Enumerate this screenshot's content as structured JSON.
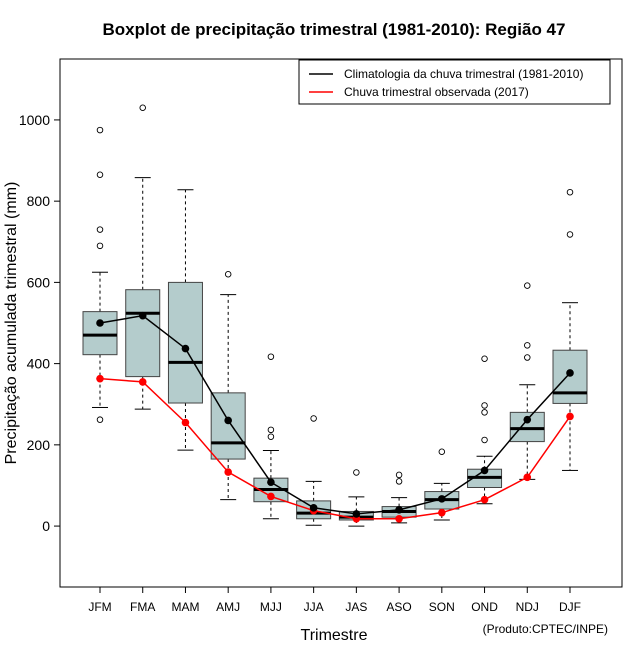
{
  "chart_data": {
    "type": "boxplot",
    "title": "Boxplot de precipitação trimestral (1981-2010): Região 47",
    "xlabel": "Trimestre",
    "ylabel": "Precipitação acumulada trimestral (mm)",
    "credit": "(Produto:CPTEC/INPE)",
    "ylim": [
      -150,
      1150
    ],
    "yticks": [
      0,
      200,
      400,
      600,
      800,
      1000
    ],
    "categories": [
      "JFM",
      "FMA",
      "MAM",
      "AMJ",
      "MJJ",
      "JJA",
      "JAS",
      "ASO",
      "SON",
      "OND",
      "NDJ",
      "DJF"
    ],
    "boxes": [
      {
        "whisker_low": 292,
        "q1": 422,
        "median": 470,
        "q3": 528,
        "whisker_high": 625,
        "outliers": [
          262,
          690,
          730,
          865,
          975
        ]
      },
      {
        "whisker_low": 288,
        "q1": 368,
        "median": 524,
        "q3": 582,
        "whisker_high": 858,
        "outliers": [
          1030
        ]
      },
      {
        "whisker_low": 187,
        "q1": 303,
        "median": 403,
        "q3": 600,
        "whisker_high": 828,
        "outliers": []
      },
      {
        "whisker_low": 65,
        "q1": 165,
        "median": 205,
        "q3": 328,
        "whisker_high": 570,
        "outliers": [
          620
        ]
      },
      {
        "whisker_low": 18,
        "q1": 60,
        "median": 90,
        "q3": 118,
        "whisker_high": 186,
        "outliers": [
          220,
          237,
          417
        ]
      },
      {
        "whisker_low": 2,
        "q1": 18,
        "median": 32,
        "q3": 62,
        "whisker_high": 110,
        "outliers": [
          265
        ]
      },
      {
        "whisker_low": 0,
        "q1": 15,
        "median": 22,
        "q3": 36,
        "whisker_high": 72,
        "outliers": [
          132
        ]
      },
      {
        "whisker_low": 8,
        "q1": 22,
        "median": 36,
        "q3": 48,
        "whisker_high": 70,
        "outliers": [
          110,
          126
        ]
      },
      {
        "whisker_low": 15,
        "q1": 42,
        "median": 65,
        "q3": 85,
        "whisker_high": 105,
        "outliers": [
          183
        ]
      },
      {
        "whisker_low": 55,
        "q1": 95,
        "median": 120,
        "q3": 140,
        "whisker_high": 172,
        "outliers": [
          212,
          280,
          297,
          412
        ]
      },
      {
        "whisker_low": 115,
        "q1": 208,
        "median": 240,
        "q3": 280,
        "whisker_high": 348,
        "outliers": [
          415,
          445,
          592
        ]
      },
      {
        "whisker_low": 137,
        "q1": 302,
        "median": 328,
        "q3": 433,
        "whisker_high": 550,
        "outliers": [
          718,
          822
        ]
      }
    ],
    "series": [
      {
        "name": "Climatologia da chuva trimestral (1981-2010)",
        "color": "#000000",
        "values": [
          500,
          518,
          437,
          260,
          108,
          45,
          30,
          40,
          67,
          137,
          262,
          377
        ]
      },
      {
        "name": "Chuva trimestral observada (2017)",
        "color": "#ff0000",
        "values": [
          363,
          355,
          255,
          133,
          73,
          38,
          18,
          18,
          33,
          65,
          120,
          270
        ]
      }
    ],
    "box_fill": "#b4cccc",
    "legend_position": "top-right"
  }
}
